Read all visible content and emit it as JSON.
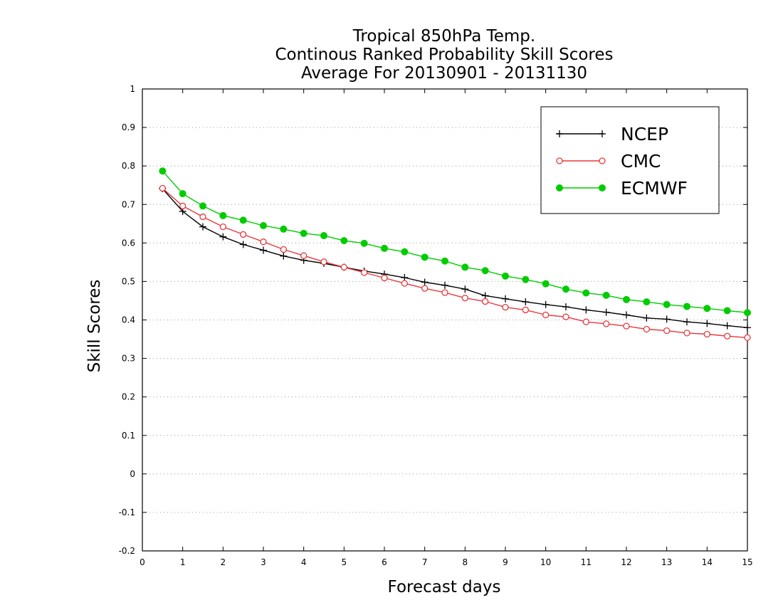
{
  "chart_data": {
    "type": "line",
    "title": [
      "Tropical 850hPa Temp.",
      "Continous Ranked Probability Skill Scores",
      "Average For 20130901 - 20131130"
    ],
    "xlabel": "Forecast days",
    "ylabel": "Skill Scores",
    "xlim": [
      0,
      15
    ],
    "ylim": [
      -0.2,
      1
    ],
    "xticks": [
      0,
      1,
      2,
      3,
      4,
      5,
      6,
      7,
      8,
      9,
      10,
      11,
      12,
      13,
      14,
      15
    ],
    "yticks": [
      -0.2,
      -0.1,
      0,
      0.1,
      0.2,
      0.3,
      0.4,
      0.5,
      0.6,
      0.7,
      0.8,
      0.9,
      1
    ],
    "ytick_labels": [
      "-0.2",
      "-0.1",
      "0",
      "0.1",
      "0.2",
      "0.3",
      "0.4",
      "0.5",
      "0.6",
      "0.7",
      "0.8",
      "0.9",
      "1"
    ],
    "grid": "horizontal dotted",
    "legend_position": "top-right",
    "x": [
      0.5,
      1.0,
      1.5,
      2.0,
      2.5,
      3.0,
      3.5,
      4.0,
      4.5,
      5.0,
      5.5,
      6.0,
      6.5,
      7.0,
      7.5,
      8.0,
      8.5,
      9.0,
      9.5,
      10.0,
      10.5,
      11.0,
      11.5,
      12.0,
      12.5,
      13.0,
      13.5,
      14.0,
      14.5,
      15.0
    ],
    "series": [
      {
        "name": "NCEP",
        "color": "#000000",
        "marker": "plus",
        "values": [
          0.741,
          0.682,
          0.642,
          0.616,
          0.596,
          0.581,
          0.566,
          0.555,
          0.547,
          0.537,
          0.527,
          0.519,
          0.51,
          0.498,
          0.49,
          0.48,
          0.463,
          0.455,
          0.447,
          0.44,
          0.434,
          0.426,
          0.42,
          0.413,
          0.405,
          0.402,
          0.395,
          0.391,
          0.385,
          0.38
        ]
      },
      {
        "name": "CMC",
        "color": "#e8383d",
        "marker": "open-circle",
        "values": [
          0.742,
          0.696,
          0.668,
          0.642,
          0.622,
          0.603,
          0.583,
          0.567,
          0.551,
          0.537,
          0.523,
          0.509,
          0.495,
          0.482,
          0.471,
          0.457,
          0.448,
          0.433,
          0.426,
          0.413,
          0.408,
          0.395,
          0.39,
          0.384,
          0.376,
          0.372,
          0.366,
          0.363,
          0.358,
          0.354
        ]
      },
      {
        "name": "ECMWF",
        "color": "#00cc00",
        "marker": "filled-circle",
        "values": [
          0.787,
          0.728,
          0.696,
          0.671,
          0.659,
          0.645,
          0.636,
          0.625,
          0.619,
          0.606,
          0.599,
          0.586,
          0.577,
          0.563,
          0.553,
          0.537,
          0.528,
          0.514,
          0.505,
          0.494,
          0.48,
          0.47,
          0.464,
          0.453,
          0.447,
          0.44,
          0.435,
          0.43,
          0.424,
          0.419
        ]
      }
    ]
  }
}
